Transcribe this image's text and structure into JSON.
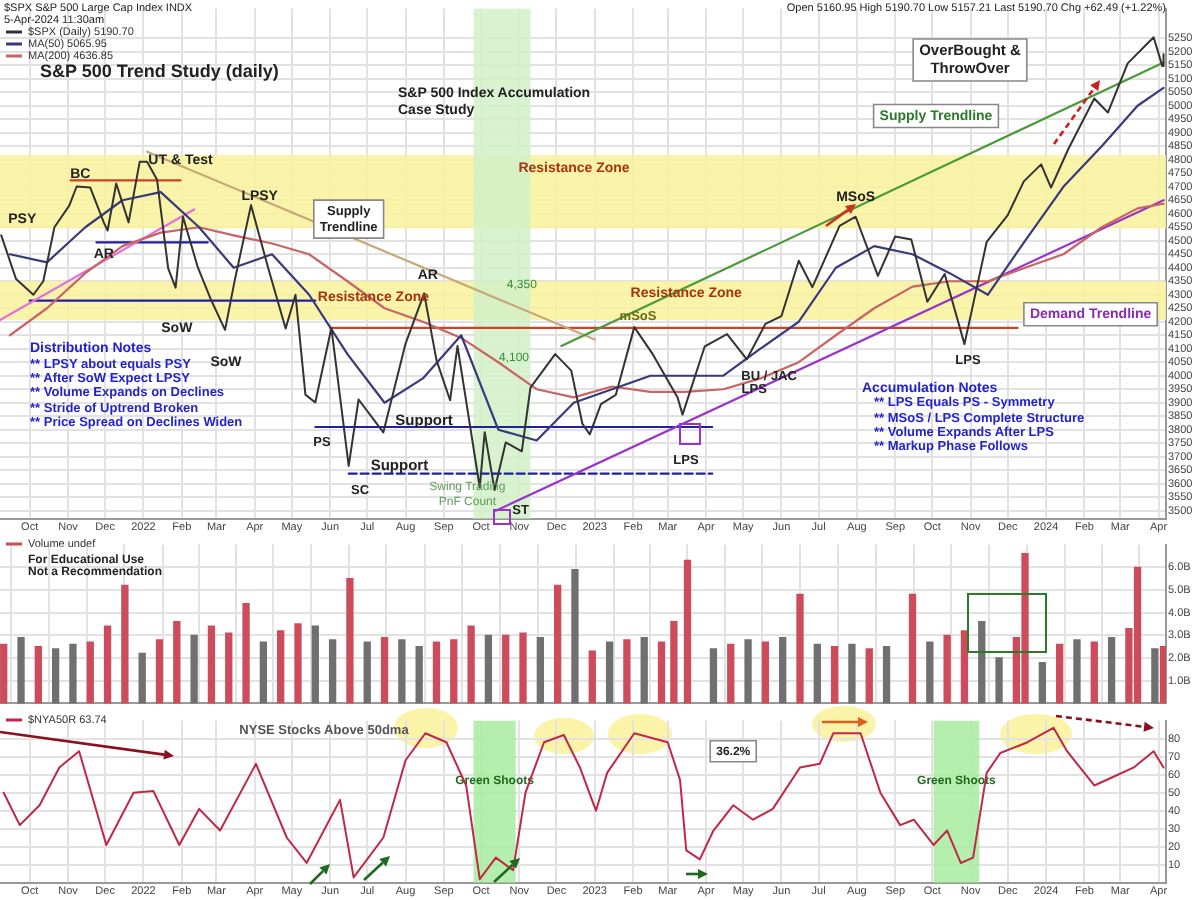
{
  "chart_data": [
    {
      "type": "line",
      "title": "S&P 500 Trend Study (daily)",
      "subtitle": "S&P 500 Index Accumulation Case Study",
      "legend": "top left",
      "grid": true,
      "xlim": [
        "2021-09-07",
        "2024-04-07"
      ],
      "xticks": [
        {
          "value": "2021-10-01",
          "label": "Oct"
        },
        {
          "value": "2021-11-01",
          "label": "Nov"
        },
        {
          "value": "2021-12-01",
          "label": "Dec"
        },
        {
          "value": "2022-01-01",
          "label": "2022"
        },
        {
          "value": "2022-02-01",
          "label": "Feb"
        },
        {
          "value": "2022-03-01",
          "label": "Mar"
        },
        {
          "value": "2022-04-01",
          "label": "Apr"
        },
        {
          "value": "2022-05-01",
          "label": "May"
        },
        {
          "value": "2022-06-01",
          "label": "Jun"
        },
        {
          "value": "2022-07-01",
          "label": "Jul"
        },
        {
          "value": "2022-08-01",
          "label": "Aug"
        },
        {
          "value": "2022-09-01",
          "label": "Sep"
        },
        {
          "value": "2022-10-01",
          "label": "Oct"
        },
        {
          "value": "2022-11-01",
          "label": "Nov"
        },
        {
          "value": "2022-12-01",
          "label": "Dec"
        },
        {
          "value": "2023-01-01",
          "label": "2023"
        },
        {
          "value": "2023-02-01",
          "label": "Feb"
        },
        {
          "value": "2023-03-01",
          "label": "Mar"
        },
        {
          "value": "2023-04-01",
          "label": "Apr"
        },
        {
          "value": "2023-05-01",
          "label": "May"
        },
        {
          "value": "2023-06-01",
          "label": "Jun"
        },
        {
          "value": "2023-07-01",
          "label": "Jul"
        },
        {
          "value": "2023-08-01",
          "label": "Aug"
        },
        {
          "value": "2023-09-01",
          "label": "Sep"
        },
        {
          "value": "2023-10-01",
          "label": "Oct"
        },
        {
          "value": "2023-11-01",
          "label": "Nov"
        },
        {
          "value": "2023-12-01",
          "label": "Dec"
        },
        {
          "value": "2024-01-01",
          "label": "2024"
        },
        {
          "value": "2024-02-01",
          "label": "Feb"
        },
        {
          "value": "2024-03-01",
          "label": "Mar"
        },
        {
          "value": "2024-04-01",
          "label": "Apr"
        }
      ],
      "ylim": [
        3470,
        5360
      ],
      "yticks": [
        3500,
        3550,
        3600,
        3650,
        3700,
        3750,
        3800,
        3850,
        3900,
        3950,
        4000,
        4050,
        4100,
        4150,
        4200,
        4250,
        4300,
        4350,
        4400,
        4450,
        4500,
        4550,
        4600,
        4650,
        4700,
        4750,
        4800,
        4850,
        4900,
        4950,
        5000,
        5050,
        5100,
        5150,
        5200,
        5250
      ],
      "bands": [
        {
          "axis": "y",
          "from": 4545,
          "to": 4818,
          "color": "#f8f29a"
        },
        {
          "axis": "y",
          "from": 4206,
          "to": 4350,
          "color": "#f8f29a"
        },
        {
          "axis": "x",
          "from": "2022-09-25",
          "to": "2022-11-10",
          "color": "#d2f0c8"
        }
      ],
      "series": [
        {
          "name": "$SPX (Daily) 5190.70",
          "color": "#333333",
          "x": [
            "2021-09-08",
            "2021-09-20",
            "2021-10-04",
            "2021-10-12",
            "2021-10-21",
            "2021-11-02",
            "2021-11-08",
            "2021-11-19",
            "2021-11-30",
            "2021-12-03",
            "2021-12-10",
            "2021-12-20",
            "2021-12-29",
            "2022-01-04",
            "2022-01-12",
            "2022-01-21",
            "2022-01-27",
            "2022-02-02",
            "2022-02-14",
            "2022-02-24",
            "2022-03-08",
            "2022-03-16",
            "2022-03-29",
            "2022-04-12",
            "2022-04-26",
            "2022-05-04",
            "2022-05-12",
            "2022-05-20",
            "2022-06-02",
            "2022-06-16",
            "2022-06-24",
            "2022-07-14",
            "2022-08-01",
            "2022-08-16",
            "2022-08-26",
            "2022-09-06",
            "2022-09-12",
            "2022-09-30",
            "2022-10-04",
            "2022-10-12",
            "2022-10-21",
            "2022-11-03",
            "2022-11-10",
            "2022-11-30",
            "2022-12-13",
            "2022-12-22",
            "2022-12-28",
            "2023-01-06",
            "2023-01-18",
            "2023-02-02",
            "2023-02-17",
            "2023-03-09",
            "2023-03-13",
            "2023-03-31",
            "2023-04-18",
            "2023-05-04",
            "2023-05-19",
            "2023-06-01",
            "2023-06-15",
            "2023-06-26",
            "2023-07-18",
            "2023-07-31",
            "2023-08-18",
            "2023-09-01",
            "2023-09-14",
            "2023-09-27",
            "2023-10-11",
            "2023-10-27",
            "2023-11-14",
            "2023-12-01",
            "2023-12-14",
            "2023-12-28",
            "2024-01-05",
            "2024-01-19",
            "2024-02-09",
            "2024-02-20",
            "2024-03-07",
            "2024-03-28",
            "2024-04-04",
            "2024-04-05"
          ],
          "values": [
            4520,
            4358,
            4300,
            4350,
            4550,
            4630,
            4701,
            4697,
            4567,
            4538,
            4712,
            4568,
            4793,
            4793,
            4726,
            4398,
            4326,
            4589,
            4401,
            4288,
            4170,
            4357,
            4632,
            4397,
            4175,
            4300,
            3930,
            3901,
            4177,
            3666,
            3912,
            3790,
            4119,
            4305,
            4058,
            3909,
            4110,
            3586,
            3791,
            3577,
            3753,
            3720,
            3956,
            4080,
            4019,
            3822,
            3783,
            3895,
            3929,
            4180,
            4079,
            3919,
            3856,
            4109,
            4154,
            4061,
            4192,
            4221,
            4426,
            4328,
            4555,
            4589,
            4370,
            4516,
            4505,
            4274,
            4377,
            4117,
            4496,
            4595,
            4720,
            4783,
            4697,
            4840,
            5027,
            4975,
            5157,
            5254,
            5147,
            5191
          ]
        },
        {
          "name": "MA(50) 5065.95",
          "color": "#3a3a7a",
          "x": [
            "2021-09-15",
            "2021-10-15",
            "2021-11-15",
            "2021-12-15",
            "2022-01-15",
            "2022-02-15",
            "2022-03-15",
            "2022-04-15",
            "2022-05-15",
            "2022-06-15",
            "2022-07-15",
            "2022-08-15",
            "2022-09-15",
            "2022-10-15",
            "2022-11-15",
            "2022-12-15",
            "2023-01-15",
            "2023-02-15",
            "2023-03-15",
            "2023-04-15",
            "2023-05-15",
            "2023-06-15",
            "2023-07-15",
            "2023-08-15",
            "2023-09-15",
            "2023-10-15",
            "2023-11-15",
            "2023-12-15",
            "2024-01-15",
            "2024-02-15",
            "2024-03-15",
            "2024-04-05"
          ],
          "values": [
            4450,
            4420,
            4550,
            4650,
            4680,
            4550,
            4400,
            4450,
            4300,
            4080,
            3900,
            3990,
            4150,
            3800,
            3760,
            3900,
            3950,
            4000,
            4000,
            4000,
            4100,
            4200,
            4400,
            4480,
            4450,
            4380,
            4300,
            4500,
            4700,
            4850,
            5000,
            5066
          ]
        },
        {
          "name": "MA(200) 4636.85",
          "color": "#c86464",
          "x": [
            "2021-09-15",
            "2021-10-15",
            "2021-11-15",
            "2021-12-15",
            "2022-01-15",
            "2022-02-15",
            "2022-03-15",
            "2022-04-15",
            "2022-05-15",
            "2022-06-15",
            "2022-07-15",
            "2022-08-15",
            "2022-09-15",
            "2022-10-15",
            "2022-11-15",
            "2022-12-15",
            "2023-01-15",
            "2023-02-15",
            "2023-03-15",
            "2023-04-15",
            "2023-05-15",
            "2023-06-15",
            "2023-07-15",
            "2023-08-15",
            "2023-09-15",
            "2023-10-15",
            "2023-11-15",
            "2023-12-15",
            "2024-01-15",
            "2024-02-15",
            "2024-03-15",
            "2024-04-05"
          ],
          "values": [
            4150,
            4250,
            4380,
            4480,
            4530,
            4550,
            4520,
            4490,
            4450,
            4350,
            4250,
            4200,
            4140,
            4050,
            3950,
            3920,
            3960,
            3940,
            3940,
            3950,
            3990,
            4050,
            4150,
            4250,
            4330,
            4350,
            4350,
            4400,
            4450,
            4550,
            4620,
            4637
          ]
        },
        {
          "color": "#4a9a3a",
          "x": [
            "2022-12-05",
            "2024-04-05"
          ],
          "values": [
            4110,
            5160
          ]
        },
        {
          "color": "#9933cc",
          "x": [
            "2022-10-13",
            "2024-04-05"
          ],
          "values": [
            3500,
            4650
          ]
        },
        {
          "color": "#c8a878",
          "x": [
            "2022-01-04",
            "2023-01-01"
          ],
          "values": [
            4830,
            4134
          ]
        },
        {
          "color": "#e070e0",
          "x": [
            "2021-09-07",
            "2022-02-11"
          ],
          "values": [
            4206,
            4616
          ]
        },
        {
          "color": "#cc4422",
          "x": [
            "2021-11-03",
            "2022-01-31"
          ],
          "values": [
            4724,
            4724
          ]
        },
        {
          "color": "#2020a0",
          "x": [
            "2021-11-24",
            "2022-02-22"
          ],
          "values": [
            4494,
            4494
          ]
        },
        {
          "color": "#2020a0",
          "x": [
            "2021-10-01",
            "2022-05-20"
          ],
          "values": [
            4278,
            4278
          ]
        },
        {
          "color": "#cc4422",
          "x": [
            "2022-06-01",
            "2023-12-09"
          ],
          "values": [
            4177,
            4177
          ]
        },
        {
          "color": "#2020a0",
          "x": [
            "2022-05-20",
            "2023-04-06"
          ],
          "values": [
            3810,
            3810
          ]
        },
        {
          "color": "#2020a0",
          "line_style": "dashed",
          "x": [
            "2022-06-16",
            "2023-04-06"
          ],
          "values": [
            3637,
            3637
          ]
        }
      ],
      "annotations": [
        "$SPX S&P 500 Large Cap Index INDX",
        "5-Apr-2024 11:30am",
        "Open 5160.95 High 5190.70 Low 5157.21 Last 5190.70 Chg +62.49 (+1.22%)",
        "Distribution Notes",
        "** LPSY about equals PSY",
        "** After SoW Expect LPSY",
        "** Volume Expands on Declines",
        "** Stride of Uptrend Broken",
        "** Price Spread on Declines Widen",
        "Accumulation Notes",
        "** LPS Equals PS - Symmetry",
        "** MSoS / LPS Complete Structure",
        "** Volume Expands After LPS",
        "** Markup Phase Follows",
        {
          "text": "PSY",
          "x": "2021-09-25",
          "y": 4580
        },
        {
          "text": "BC",
          "x": "2021-11-11",
          "y": 4746
        },
        {
          "text": "UT & Test",
          "x": "2022-01-31",
          "y": 4800
        },
        {
          "text": "AR",
          "x": "2021-11-30",
          "y": 4451
        },
        {
          "text": "LPSY",
          "x": "2022-04-05",
          "y": 4667
        },
        {
          "text": "SoW",
          "x": "2022-01-28",
          "y": 4177
        },
        "SoW",
        {
          "text": "AR",
          "x": "2022-08-19",
          "y": 4372
        },
        "Resistance Zone",
        {
          "text": "Resistance Zone",
          "x": "2022-07-06",
          "y": 4292
        },
        {
          "text": "Resistance Zone",
          "x": "2023-03-16",
          "y": 4306
        },
        {
          "text": "Supply Trendline",
          "x": "2022-06-16",
          "y": 4580
        },
        "Supply Trendline",
        {
          "text": "MSoS",
          "x": "2023-07-31",
          "y": 4660
        },
        {
          "text": "mSoS",
          "x": "2023-02-05",
          "y": 4220
        },
        {
          "text": "4,350",
          "x": "2022-11-03",
          "y": 4336
        },
        "4,100",
        "PS",
        "SC",
        {
          "text": "Support",
          "x": "2022-08-16",
          "y": 3832
        },
        {
          "text": "Support",
          "x": "2022-07-27",
          "y": 3666
        },
        {
          "text": "Swing Trading PnF Count",
          "x": "2022-09-20",
          "y": 3560
        },
        {
          "text": "ST",
          "x": "2022-11-02",
          "y": 3500
        },
        "LPS",
        {
          "text": "BU / JAC",
          "x": "2023-05-22",
          "y": 3999
        },
        {
          "text": "LPS",
          "x": "2023-05-10",
          "y": 3949
        },
        "LPS",
        {
          "text": "Demand Trendline",
          "x": "2024-02-06",
          "y": 4228
        },
        "OverBought & ThrowOver"
      ]
    },
    {
      "type": "bar",
      "legend": "top left",
      "grid": true,
      "tick_labels": "y",
      "xlim": [
        "2021-09-07",
        "2024-04-07"
      ],
      "xticks": [
        {
          "value": "2021-10-01",
          "label": null
        },
        {
          "value": "2021-11-01",
          "label": null
        },
        {
          "value": "2021-12-01",
          "label": null
        },
        {
          "value": "2022-01-01",
          "label": null
        },
        {
          "value": "2022-02-01",
          "label": null
        },
        {
          "value": "2022-03-01",
          "label": null
        },
        {
          "value": "2022-04-01",
          "label": null
        },
        {
          "value": "2022-05-01",
          "label": null
        },
        {
          "value": "2022-06-01",
          "label": null
        },
        {
          "value": "2022-07-01",
          "label": null
        },
        {
          "value": "2022-08-01",
          "label": null
        },
        {
          "value": "2022-09-01",
          "label": null
        },
        {
          "value": "2022-10-01",
          "label": null
        },
        {
          "value": "2022-11-01",
          "label": null
        },
        {
          "value": "2022-12-01",
          "label": null
        },
        {
          "value": "2023-01-01",
          "label": null
        },
        {
          "value": "2023-02-01",
          "label": null
        },
        {
          "value": "2023-03-01",
          "label": null
        },
        {
          "value": "2023-04-01",
          "label": null
        },
        {
          "value": "2023-05-01",
          "label": null
        },
        {
          "value": "2023-06-01",
          "label": null
        },
        {
          "value": "2023-07-01",
          "label": null
        },
        {
          "value": "2023-08-01",
          "label": null
        },
        {
          "value": "2023-09-01",
          "label": null
        },
        {
          "value": "2023-10-01",
          "label": null
        },
        {
          "value": "2023-11-01",
          "label": null
        },
        {
          "value": "2023-12-01",
          "label": null
        },
        {
          "value": "2024-01-01",
          "label": null
        },
        {
          "value": "2024-02-01",
          "label": null
        },
        {
          "value": "2024-03-01",
          "label": null
        },
        {
          "value": "2024-04-01",
          "label": null
        }
      ],
      "ylim": [
        0,
        7
      ],
      "yticks": [
        {
          "value": 1,
          "label": "1.0B"
        },
        {
          "value": 2,
          "label": "2.0B"
        },
        {
          "value": 3,
          "label": "3.0B"
        },
        {
          "value": 4,
          "label": "4.0B"
        },
        {
          "value": 5,
          "label": "5.0B"
        },
        {
          "value": 6,
          "label": "6.0B"
        }
      ],
      "series": [
        {
          "name": "Volume undef",
          "color": "#cc4c5c",
          "x": [
            "2021-09-10",
            "2021-09-24",
            "2021-10-08",
            "2021-10-22",
            "2021-11-05",
            "2021-11-19",
            "2021-12-03",
            "2021-12-17",
            "2021-12-31",
            "2022-01-14",
            "2022-01-28",
            "2022-02-11",
            "2022-02-25",
            "2022-03-11",
            "2022-03-25",
            "2022-04-08",
            "2022-04-22",
            "2022-05-06",
            "2022-05-20",
            "2022-06-03",
            "2022-06-17",
            "2022-07-01",
            "2022-07-15",
            "2022-07-29",
            "2022-08-12",
            "2022-08-26",
            "2022-09-09",
            "2022-09-23",
            "2022-10-07",
            "2022-10-21",
            "2022-11-04",
            "2022-11-18",
            "2022-12-02",
            "2022-12-16",
            "2022-12-30",
            "2023-01-13",
            "2023-01-27",
            "2023-02-10",
            "2023-02-24",
            "2023-03-06",
            "2023-03-17",
            "2023-04-07",
            "2023-04-21",
            "2023-05-05",
            "2023-05-19",
            "2023-06-02",
            "2023-06-16",
            "2023-06-30",
            "2023-07-14",
            "2023-07-28",
            "2023-08-11",
            "2023-08-25",
            "2023-09-15",
            "2023-09-29",
            "2023-10-13",
            "2023-10-27",
            "2023-11-10",
            "2023-11-24",
            "2023-12-08",
            "2023-12-15",
            "2023-12-29",
            "2024-01-12",
            "2024-01-26",
            "2024-02-09",
            "2024-02-23",
            "2024-03-08",
            "2024-03-15",
            "2024-03-29",
            "2024-04-05"
          ],
          "values": [
            2.6,
            2.9,
            2.5,
            2.4,
            2.6,
            2.7,
            3.4,
            5.2,
            2.2,
            2.8,
            3.6,
            3.0,
            3.4,
            3.1,
            4.4,
            2.7,
            3.2,
            3.5,
            3.4,
            2.8,
            5.5,
            2.7,
            2.9,
            2.8,
            2.5,
            2.7,
            2.8,
            3.4,
            3.0,
            3.0,
            3.1,
            2.9,
            5.2,
            5.9,
            2.3,
            2.7,
            2.8,
            2.9,
            2.7,
            3.6,
            6.3,
            2.4,
            2.6,
            2.8,
            2.7,
            2.9,
            4.8,
            2.6,
            2.5,
            2.6,
            2.4,
            2.5,
            4.8,
            2.7,
            3.0,
            3.2,
            3.6,
            2.0,
            2.9,
            6.6,
            1.8,
            2.6,
            2.8,
            2.7,
            2.9,
            3.3,
            6.0,
            2.4,
            2.5
          ],
          "colors": [
            "#cc4c5c",
            "#707070",
            "#cc4c5c",
            "#707070",
            "#707070",
            "#cc4c5c",
            "#cc4c5c",
            "#cc4c5c",
            "#707070",
            "#cc4c5c",
            "#cc4c5c",
            "#707070",
            "#cc4c5c",
            "#cc4c5c",
            "#cc4c5c",
            "#707070",
            "#cc4c5c",
            "#cc4c5c",
            "#707070",
            "#707070",
            "#cc4c5c",
            "#707070",
            "#cc4c5c",
            "#707070",
            "#707070",
            "#cc4c5c",
            "#cc4c5c",
            "#cc4c5c",
            "#707070",
            "#cc4c5c",
            "#cc4c5c",
            "#707070",
            "#cc4c5c",
            "#707070",
            "#cc4c5c",
            "#707070",
            "#cc4c5c",
            "#707070",
            "#cc4c5c",
            "#cc4c5c",
            "#cc4c5c",
            "#707070",
            "#cc4c5c",
            "#707070",
            "#cc4c5c",
            "#707070",
            "#cc4c5c",
            "#707070",
            "#cc4c5c",
            "#707070",
            "#cc4c5c",
            "#707070",
            "#cc4c5c",
            "#707070",
            "#cc4c5c",
            "#cc4c5c",
            "#707070",
            "#707070",
            "#cc4c5c",
            "#cc4c5c",
            "#707070",
            "#cc4c5c",
            "#707070",
            "#cc4c5c",
            "#707070",
            "#cc4c5c",
            "#cc4c5c",
            "#707070",
            "#cc4c5c"
          ]
        }
      ],
      "annotations": [
        "For Educational Use",
        "Not a Recommendation"
      ]
    },
    {
      "type": "line",
      "title": "NYSE Stocks Above 50dma",
      "legend": "top left",
      "grid": true,
      "xlim": [
        "2021-09-07",
        "2024-04-07"
      ],
      "xticks": [
        {
          "value": "2021-10-01",
          "label": "Oct"
        },
        {
          "value": "2021-11-01",
          "label": "Nov"
        },
        {
          "value": "2021-12-01",
          "label": "Dec"
        },
        {
          "value": "2022-01-01",
          "label": "2022"
        },
        {
          "value": "2022-02-01",
          "label": "Feb"
        },
        {
          "value": "2022-03-01",
          "label": "Mar"
        },
        {
          "value": "2022-04-01",
          "label": "Apr"
        },
        {
          "value": "2022-05-01",
          "label": "May"
        },
        {
          "value": "2022-06-01",
          "label": "Jun"
        },
        {
          "value": "2022-07-01",
          "label": "Jul"
        },
        {
          "value": "2022-08-01",
          "label": "Aug"
        },
        {
          "value": "2022-09-01",
          "label": "Sep"
        },
        {
          "value": "2022-10-01",
          "label": "Oct"
        },
        {
          "value": "2022-11-01",
          "label": "Nov"
        },
        {
          "value": "2022-12-01",
          "label": "Dec"
        },
        {
          "value": "2023-01-01",
          "label": "2023"
        },
        {
          "value": "2023-02-01",
          "label": "Feb"
        },
        {
          "value": "2023-03-01",
          "label": "Mar"
        },
        {
          "value": "2023-04-01",
          "label": "Apr"
        },
        {
          "value": "2023-05-01",
          "label": "May"
        },
        {
          "value": "2023-06-01",
          "label": "Jun"
        },
        {
          "value": "2023-07-01",
          "label": "Jul"
        },
        {
          "value": "2023-08-01",
          "label": "Aug"
        },
        {
          "value": "2023-09-01",
          "label": "Sep"
        },
        {
          "value": "2023-10-01",
          "label": "Oct"
        },
        {
          "value": "2023-11-01",
          "label": "Nov"
        },
        {
          "value": "2023-12-01",
          "label": "Dec"
        },
        {
          "value": "2024-01-01",
          "label": "2024"
        },
        {
          "value": "2024-02-01",
          "label": "Feb"
        },
        {
          "value": "2024-03-01",
          "label": "Mar"
        },
        {
          "value": "2024-04-01",
          "label": "Apr"
        }
      ],
      "ylim": [
        0,
        90
      ],
      "yticks": [
        10,
        20,
        30,
        40,
        50,
        60,
        70,
        80
      ],
      "bands": [
        {
          "axis": "x",
          "from": "2022-09-25",
          "to": "2022-10-29",
          "label": "Green Shoots",
          "color": "#a8eca0"
        },
        {
          "axis": "x",
          "from": "2023-10-02",
          "to": "2023-11-08",
          "label": "Green Shoots",
          "color": "#a8eca0"
        }
      ],
      "series": [
        {
          "name": "$NYA50R 63.74",
          "color": "#c0284a",
          "x": [
            "2021-09-10",
            "2021-09-23",
            "2021-10-09",
            "2021-10-25",
            "2021-11-10",
            "2021-12-02",
            "2021-12-24",
            "2022-01-09",
            "2022-01-30",
            "2022-02-15",
            "2022-03-04",
            "2022-04-02",
            "2022-04-27",
            "2022-05-13",
            "2022-06-09",
            "2022-06-20",
            "2022-07-14",
            "2022-08-01",
            "2022-08-17",
            "2022-09-03",
            "2022-09-19",
            "2022-09-30",
            "2022-10-13",
            "2022-10-27",
            "2022-11-06",
            "2022-11-21",
            "2022-12-07",
            "2022-12-20",
            "2023-01-02",
            "2023-01-11",
            "2023-02-02",
            "2023-03-01",
            "2023-03-11",
            "2023-03-16",
            "2023-03-27",
            "2023-04-07",
            "2023-04-23",
            "2023-05-09",
            "2023-05-25",
            "2023-06-16",
            "2023-07-02",
            "2023-07-13",
            "2023-08-04",
            "2023-08-20",
            "2023-09-05",
            "2023-09-16",
            "2023-10-02",
            "2023-10-13",
            "2023-10-24",
            "2023-11-03",
            "2023-11-14",
            "2023-11-25",
            "2023-12-17",
            "2024-01-07",
            "2024-01-18",
            "2024-02-09",
            "2024-02-25",
            "2024-03-12",
            "2024-03-28",
            "2024-04-05"
          ],
          "values": [
            50,
            32,
            43,
            64,
            73,
            21,
            50,
            51,
            21,
            41,
            29,
            66,
            25,
            11,
            46,
            3,
            25,
            68,
            83,
            78,
            54,
            2,
            14,
            7,
            50,
            78,
            82,
            64,
            40,
            61,
            83,
            78,
            57,
            18,
            13,
            29,
            43,
            35,
            41,
            64,
            66,
            83,
            83,
            50,
            32,
            35,
            21,
            29,
            11,
            14,
            61,
            72,
            78,
            86,
            73,
            54,
            59,
            64,
            73,
            64
          ]
        }
      ],
      "annotations": [
        {
          "text": "36.2%",
          "x": "2023-04-23",
          "y": 73
        }
      ]
    }
  ]
}
